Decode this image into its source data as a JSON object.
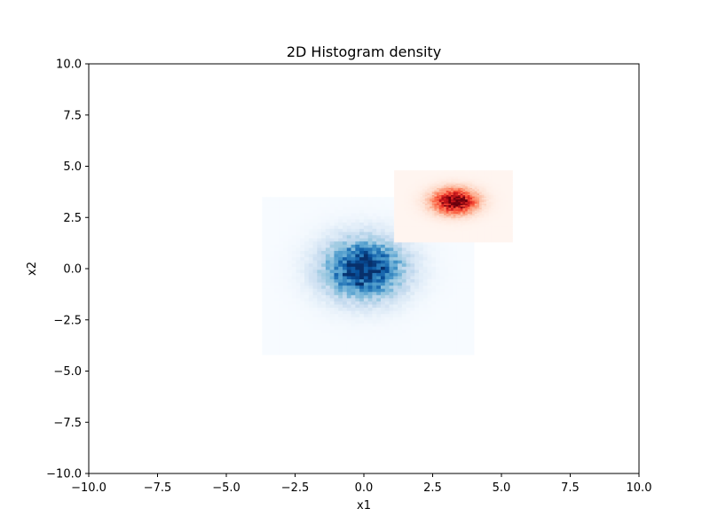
{
  "chart_data": {
    "type": "heatmap",
    "title": "2D Histogram density",
    "xlabel": "x1",
    "ylabel": "x2",
    "xlim": [
      -10,
      10
    ],
    "ylim": [
      -10,
      10
    ],
    "grid": false,
    "legend": "none",
    "x_ticks": [
      -10,
      -7.5,
      -5,
      -2.5,
      0,
      2.5,
      5,
      7.5,
      10
    ],
    "y_ticks": [
      -10,
      -7.5,
      -5,
      -2.5,
      0,
      2.5,
      5,
      7.5,
      10
    ],
    "x_tick_labels": [
      "−10.0",
      "−7.5",
      "−5.0",
      "−2.5",
      "0.0",
      "2.5",
      "5.0",
      "7.5",
      "10.0"
    ],
    "y_tick_labels": [
      "−10.0",
      "−7.5",
      "−5.0",
      "−2.5",
      "0.0",
      "2.5",
      "5.0",
      "7.5",
      "10.0"
    ],
    "series": [
      {
        "colormap": "Blues",
        "x_range": [
          -3.7,
          4.0
        ],
        "y_range": [
          -4.2,
          3.5
        ],
        "bins": 50,
        "center": [
          0.0,
          0.0
        ],
        "std": [
          1.0,
          1.0
        ]
      },
      {
        "colormap": "Reds",
        "x_range": [
          1.1,
          5.4
        ],
        "y_range": [
          1.3,
          4.8
        ],
        "bins": 50,
        "center": [
          3.3,
          3.3
        ],
        "std": [
          0.55,
          0.42
        ]
      }
    ]
  }
}
